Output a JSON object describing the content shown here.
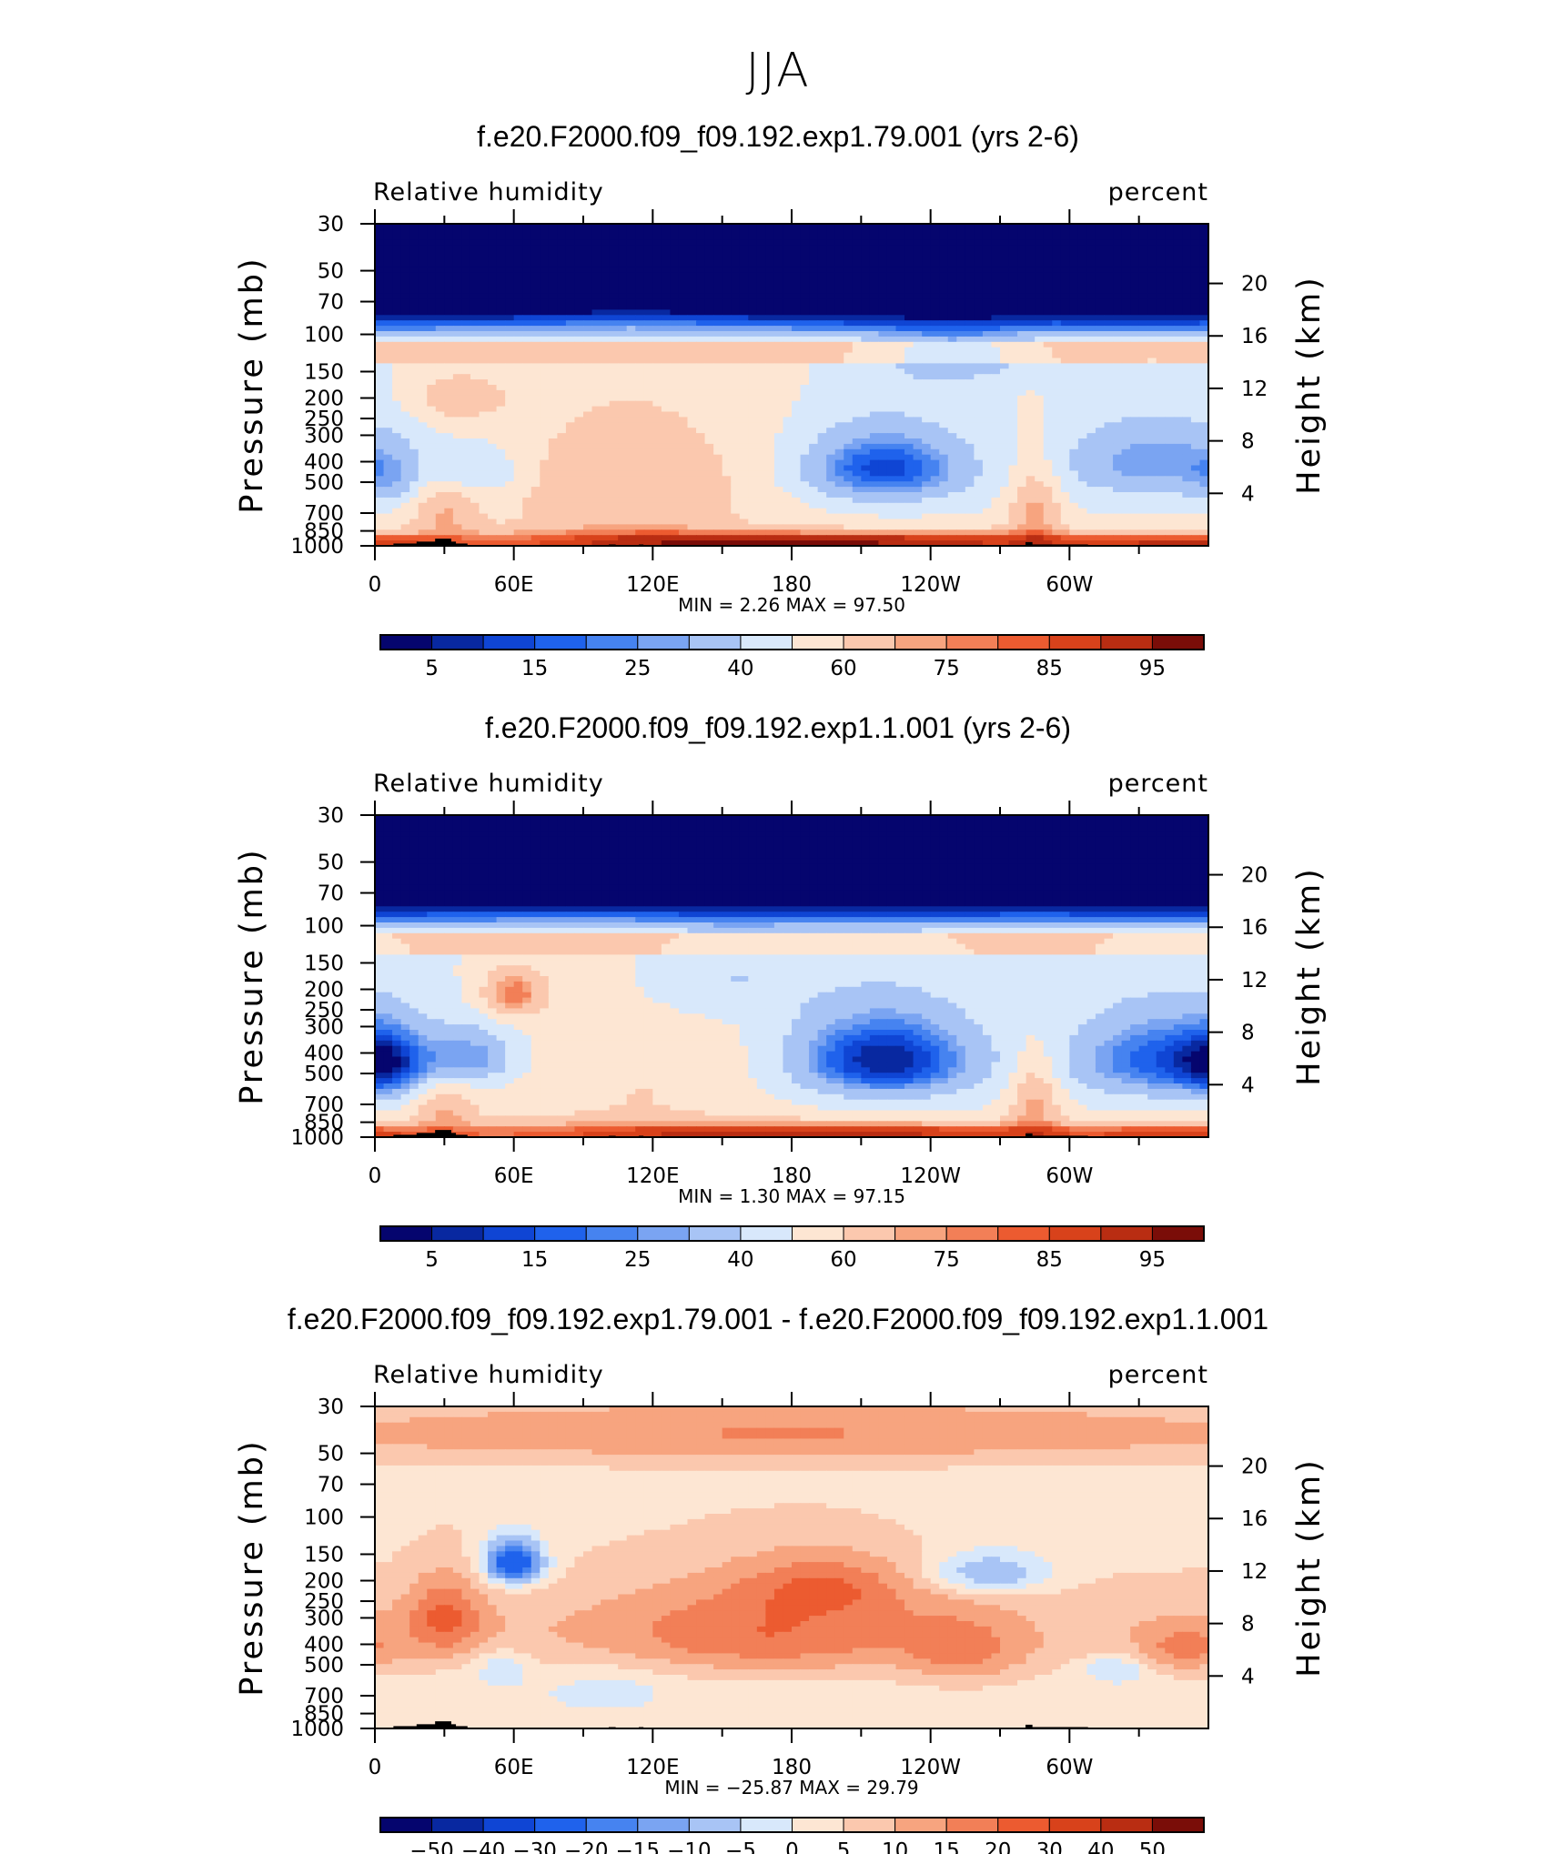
{
  "figure_title": "JJA",
  "colors": {
    "scale": [
      "#05056e",
      "#0828a0",
      "#0f45d4",
      "#1f62ec",
      "#4683f0",
      "#7aa4f2",
      "#a8c4f5",
      "#d8e8fb",
      "#fde6d3",
      "#fbc8ae",
      "#f7a47f",
      "#f27f57",
      "#ec5b30",
      "#d8421b",
      "#b92d12",
      "#7a0d08"
    ],
    "land": "#000000"
  },
  "chart_data": [
    {
      "type": "heatmap",
      "title": "f.e20.F2000.f09_f09.192.exp1.79.001 (yrs 2-6)",
      "variable_label": "Relative humidity",
      "units_label": "percent",
      "ylabel": "Pressure (mb)",
      "y2label": "Height (km)",
      "x_ticks": [
        "0",
        "60E",
        "120E",
        "180",
        "120W",
        "60W"
      ],
      "x_tick_values": [
        0,
        60,
        120,
        180,
        240,
        300
      ],
      "xlim": [
        0,
        360
      ],
      "y_ticks": [
        "30",
        "50",
        "70",
        "100",
        "150",
        "200",
        "250",
        "300",
        "400",
        "500",
        "700",
        "850",
        "1000"
      ],
      "y_tick_values": [
        30,
        50,
        70,
        100,
        150,
        200,
        250,
        300,
        400,
        500,
        700,
        850,
        1000
      ],
      "ylim": [
        1000,
        30
      ],
      "y2_ticks": [
        "4",
        "8",
        "12",
        "16",
        "20"
      ],
      "y2_tick_values": [
        4,
        8,
        12,
        16,
        20
      ],
      "stats": {
        "min_label": "MIN =",
        "min_value": "2.26",
        "max_label": "MAX =",
        "max_value": "97.50"
      },
      "colorbar_labels": [
        "5",
        "15",
        "25",
        "40",
        "60",
        "75",
        "85",
        "95"
      ],
      "colorbar_levels": [
        5,
        10,
        15,
        20,
        25,
        30,
        40,
        50,
        60,
        70,
        75,
        80,
        85,
        90,
        95
      ],
      "features": [
        {
          "x": 110,
          "y": 560,
          "sigma_x": 40,
          "sigma_y": 300,
          "amp": 20
        },
        {
          "x": 220,
          "y": 430,
          "sigma_x": 25,
          "sigma_y": 120,
          "amp": -38
        },
        {
          "x": 335,
          "y": 400,
          "sigma_x": 28,
          "sigma_y": 120,
          "amp": -24
        },
        {
          "x": 5,
          "y": 480,
          "sigma_x": 10,
          "sigma_y": 110,
          "amp": -14
        },
        {
          "x": 47,
          "y": 450,
          "sigma_x": 12,
          "sigma_y": 80,
          "amp": -14
        },
        {
          "x": 200,
          "y": 940,
          "sigma_x": 80,
          "sigma_y": 60,
          "amp": 24
        },
        {
          "x": 30,
          "y": 700,
          "sigma_x": 10,
          "sigma_y": 140,
          "amp": 18
        },
        {
          "x": 285,
          "y": 650,
          "sigma_x": 8,
          "sigma_y": 200,
          "amp": 22
        },
        {
          "x": 350,
          "y": 950,
          "sigma_x": 25,
          "sigma_y": 40,
          "amp": 16
        },
        {
          "x": 250,
          "y": 130,
          "sigma_x": 20,
          "sigma_y": 25,
          "amp": -20
        },
        {
          "x": 35,
          "y": 200,
          "sigma_x": 15,
          "sigma_y": 40,
          "amp": 16
        }
      ]
    },
    {
      "type": "heatmap",
      "title": "f.e20.F2000.f09_f09.192.exp1.1.001 (yrs 2-6)",
      "variable_label": "Relative humidity",
      "units_label": "percent",
      "ylabel": "Pressure (mb)",
      "y2label": "Height (km)",
      "x_ticks": [
        "0",
        "60E",
        "120E",
        "180",
        "120W",
        "60W"
      ],
      "x_tick_values": [
        0,
        60,
        120,
        180,
        240,
        300
      ],
      "xlim": [
        0,
        360
      ],
      "y_ticks": [
        "30",
        "50",
        "70",
        "100",
        "150",
        "200",
        "250",
        "300",
        "400",
        "500",
        "700",
        "850",
        "1000"
      ],
      "y_tick_values": [
        30,
        50,
        70,
        100,
        150,
        200,
        250,
        300,
        400,
        500,
        700,
        850,
        1000
      ],
      "ylim": [
        1000,
        30
      ],
      "y2_ticks": [
        "4",
        "8",
        "12",
        "16",
        "20"
      ],
      "y2_tick_values": [
        4,
        8,
        12,
        16,
        20
      ],
      "stats": {
        "min_label": "MIN =",
        "min_value": "1.30",
        "max_label": "MAX =",
        "max_value": "97.15"
      },
      "colorbar_labels": [
        "5",
        "15",
        "25",
        "40",
        "60",
        "75",
        "85",
        "95"
      ],
      "colorbar_levels": [
        5,
        10,
        15,
        20,
        25,
        30,
        40,
        50,
        60,
        70,
        75,
        80,
        85,
        90,
        95
      ],
      "features": [
        {
          "x": 115,
          "y": 600,
          "sigma_x": 40,
          "sigma_y": 300,
          "amp": 10
        },
        {
          "x": 220,
          "y": 430,
          "sigma_x": 28,
          "sigma_y": 140,
          "amp": -45
        },
        {
          "x": 340,
          "y": 430,
          "sigma_x": 28,
          "sigma_y": 140,
          "amp": -34
        },
        {
          "x": 5,
          "y": 450,
          "sigma_x": 12,
          "sigma_y": 120,
          "amp": -28
        },
        {
          "x": 42,
          "y": 420,
          "sigma_x": 14,
          "sigma_y": 90,
          "amp": -24
        },
        {
          "x": 60,
          "y": 210,
          "sigma_x": 10,
          "sigma_y": 40,
          "amp": 28
        },
        {
          "x": 200,
          "y": 940,
          "sigma_x": 80,
          "sigma_y": 60,
          "amp": 20
        },
        {
          "x": 30,
          "y": 720,
          "sigma_x": 10,
          "sigma_y": 140,
          "amp": 18
        },
        {
          "x": 285,
          "y": 650,
          "sigma_x": 8,
          "sigma_y": 200,
          "amp": 22
        },
        {
          "x": 350,
          "y": 950,
          "sigma_x": 25,
          "sigma_y": 40,
          "amp": 14
        },
        {
          "x": 150,
          "y": 180,
          "sigma_x": 25,
          "sigma_y": 60,
          "amp": -12
        }
      ]
    },
    {
      "type": "heatmap",
      "title": "f.e20.F2000.f09_f09.192.exp1.79.001 - f.e20.F2000.f09_f09.192.exp1.1.001",
      "variable_label": "Relative humidity",
      "units_label": "percent",
      "ylabel": "Pressure (mb)",
      "y2label": "Height (km)",
      "x_ticks": [
        "0",
        "60E",
        "120E",
        "180",
        "120W",
        "60W"
      ],
      "x_tick_values": [
        0,
        60,
        120,
        180,
        240,
        300
      ],
      "xlim": [
        0,
        360
      ],
      "y_ticks": [
        "30",
        "50",
        "70",
        "100",
        "150",
        "200",
        "250",
        "300",
        "400",
        "500",
        "700",
        "850",
        "1000"
      ],
      "y_tick_values": [
        30,
        50,
        70,
        100,
        150,
        200,
        250,
        300,
        400,
        500,
        700,
        850,
        1000
      ],
      "ylim": [
        1000,
        30
      ],
      "y2_ticks": [
        "4",
        "8",
        "12",
        "16",
        "20"
      ],
      "y2_tick_values": [
        4,
        8,
        12,
        16,
        20
      ],
      "stats": {
        "min_label": "MIN =",
        "min_value": "−25.87",
        "max_label": "MAX =",
        "max_value": "29.79"
      },
      "colorbar_labels": [
        "−50",
        "−40",
        "−30",
        "−20",
        "−15",
        "−10",
        "−5",
        "0",
        "5",
        "10",
        "15",
        "20",
        "30",
        "40",
        "50"
      ],
      "colorbar_levels": [
        -50,
        -40,
        -30,
        -20,
        -15,
        -10,
        -5,
        0,
        5,
        10,
        15,
        20,
        30,
        40,
        50
      ],
      "features": [
        {
          "x": 170,
          "y": 350,
          "sigma_x": 50,
          "sigma_y": 130,
          "amp": 12
        },
        {
          "x": 195,
          "y": 210,
          "sigma_x": 25,
          "sigma_y": 50,
          "amp": 10
        },
        {
          "x": 30,
          "y": 300,
          "sigma_x": 12,
          "sigma_y": 90,
          "amp": 14
        },
        {
          "x": 60,
          "y": 165,
          "sigma_x": 9,
          "sigma_y": 28,
          "amp": -32
        },
        {
          "x": 265,
          "y": 185,
          "sigma_x": 18,
          "sigma_y": 30,
          "amp": -16
        },
        {
          "x": 320,
          "y": 520,
          "sigma_x": 10,
          "sigma_y": 60,
          "amp": -10
        },
        {
          "x": 55,
          "y": 520,
          "sigma_x": 8,
          "sigma_y": 70,
          "amp": -9
        },
        {
          "x": 255,
          "y": 450,
          "sigma_x": 18,
          "sigma_y": 120,
          "amp": 9
        },
        {
          "x": 350,
          "y": 420,
          "sigma_x": 15,
          "sigma_y": 80,
          "amp": 10
        },
        {
          "x": 180,
          "y": 40,
          "sigma_x": 200,
          "sigma_y": 10,
          "amp": 12
        },
        {
          "x": 100,
          "y": 650,
          "sigma_x": 20,
          "sigma_y": 120,
          "amp": -5
        }
      ]
    }
  ]
}
